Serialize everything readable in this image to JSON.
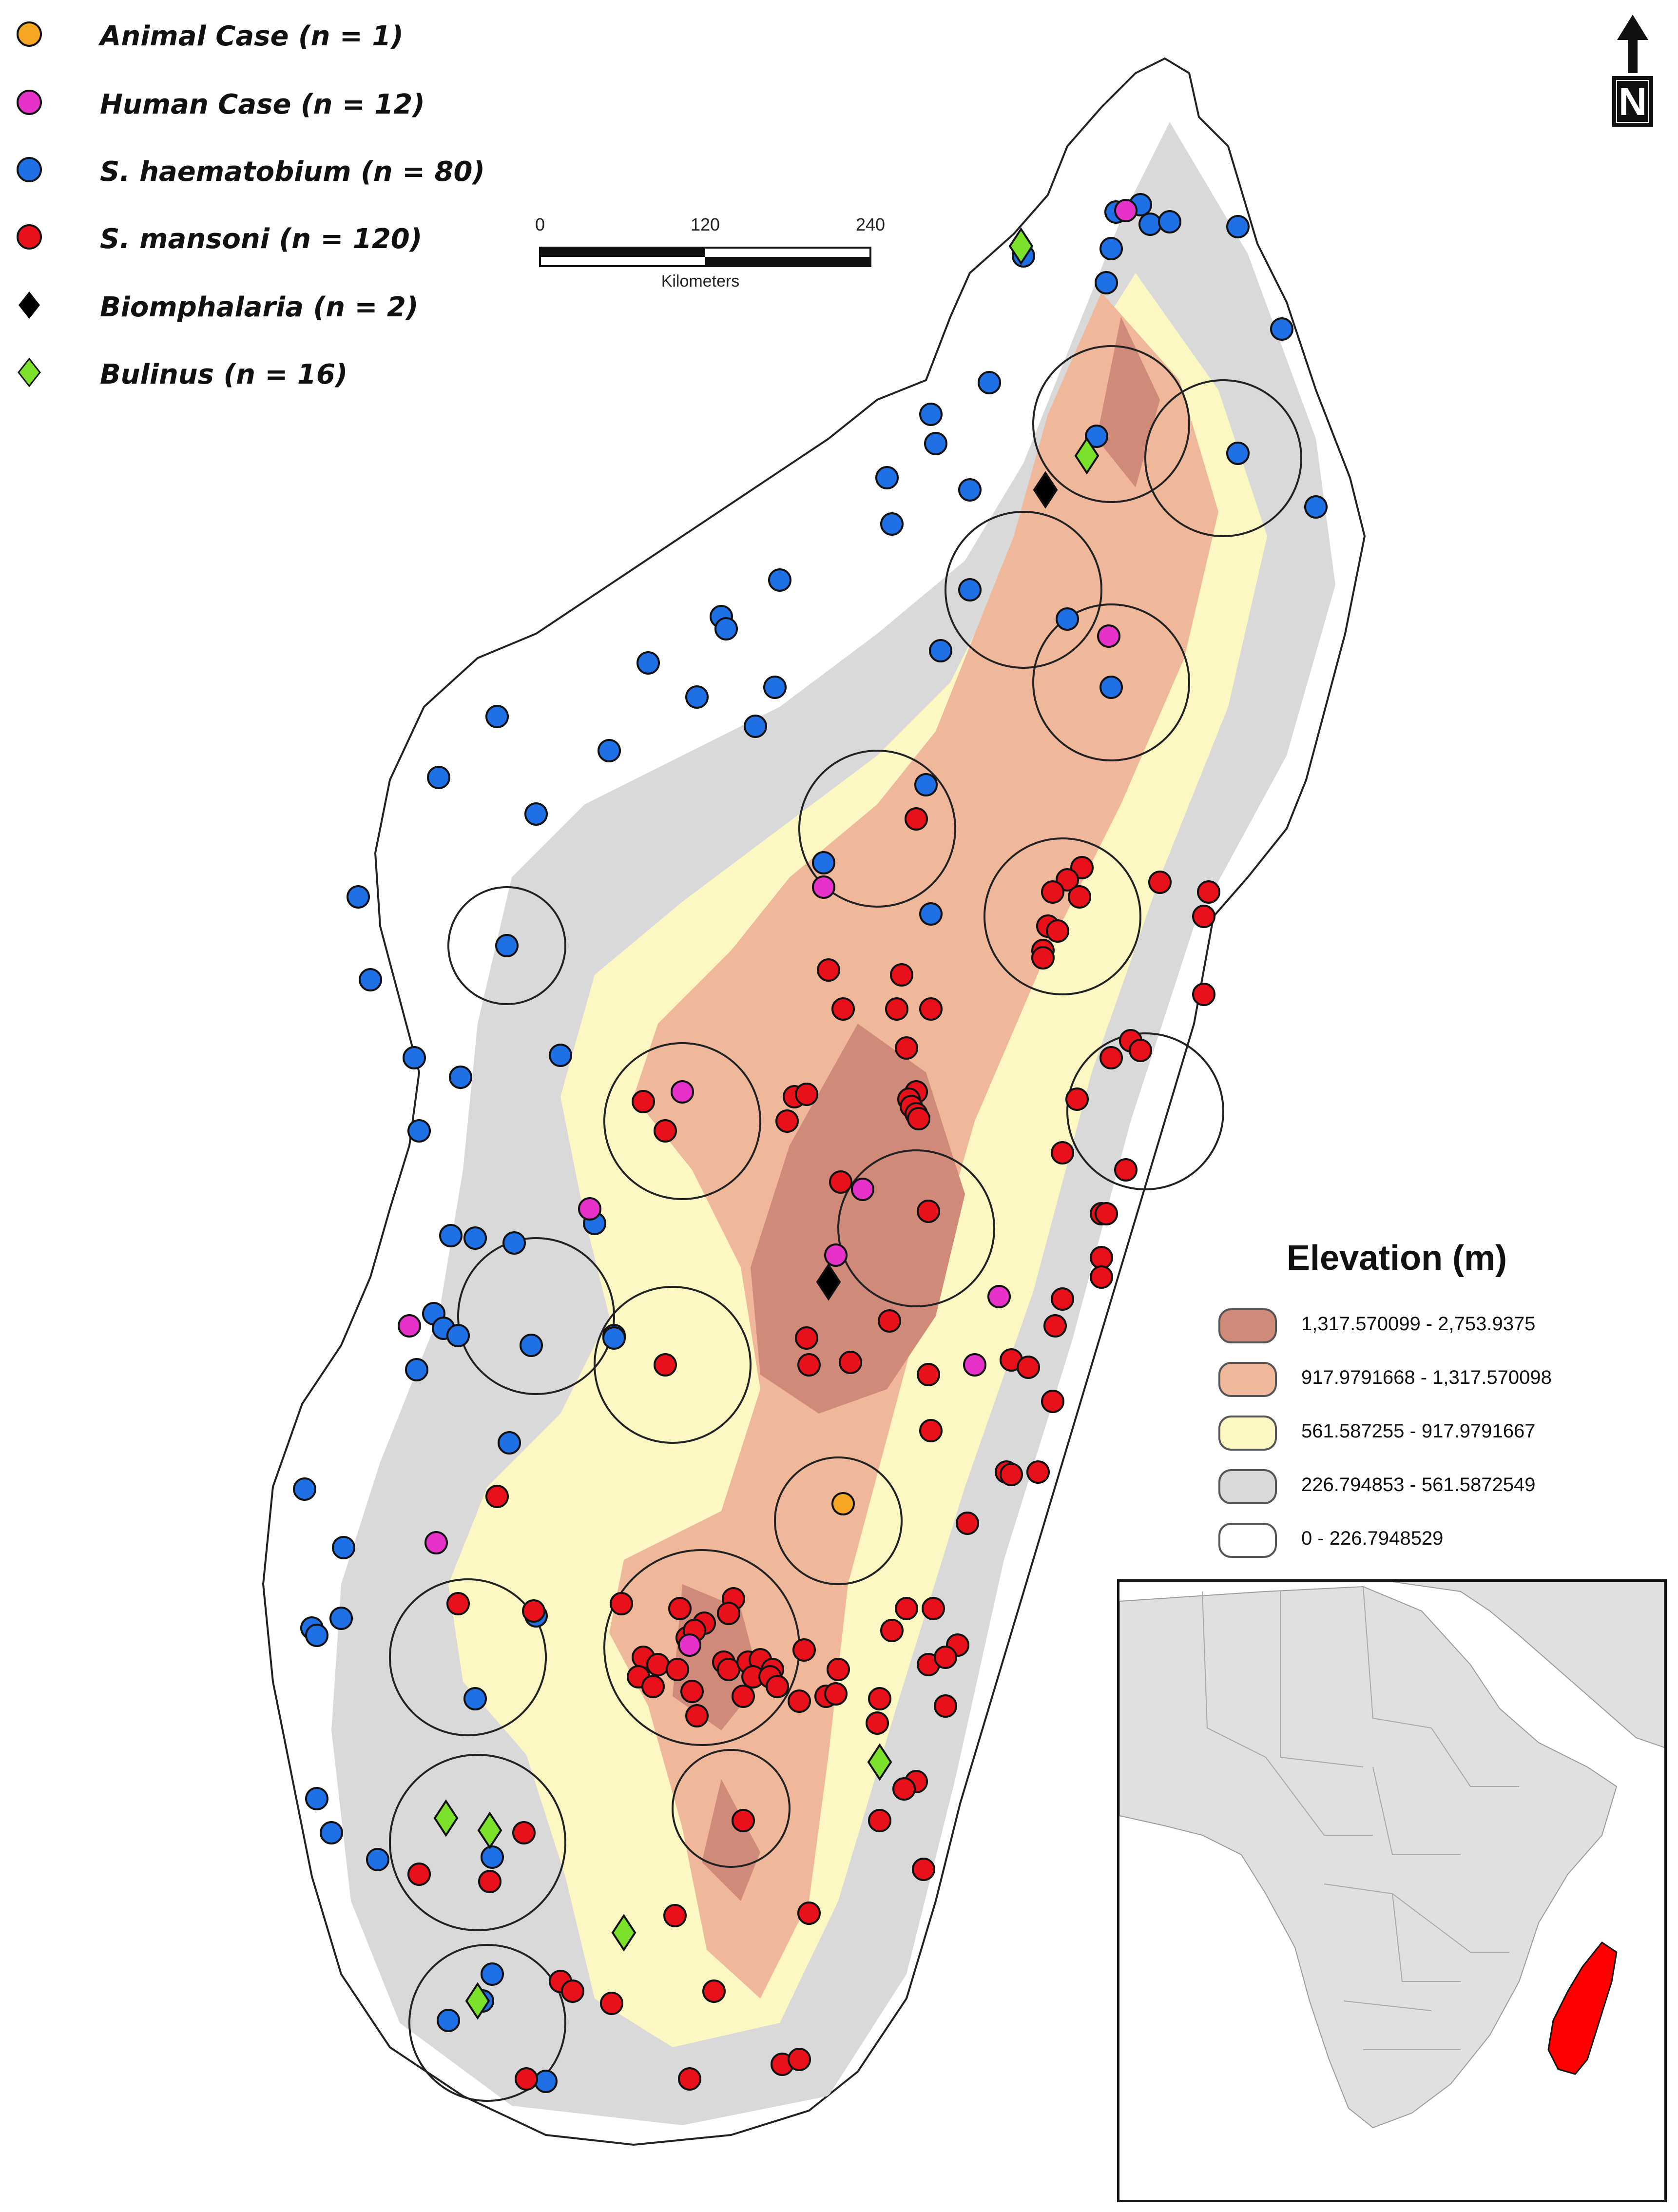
{
  "legend": {
    "items": [
      {
        "label": "Animal Case (n = 1)",
        "shape": "circle",
        "color": "#f5a623",
        "icon": "orange-dot-icon"
      },
      {
        "label": "Human Case (n = 12)",
        "shape": "circle",
        "color": "#e632c8",
        "icon": "magenta-dot-icon"
      },
      {
        "label": "S. haematobium (n = 80)",
        "shape": "circle",
        "color": "#1f6fe5",
        "icon": "blue-dot-icon"
      },
      {
        "label": "S. mansoni (n = 120)",
        "shape": "circle",
        "color": "#e8111b",
        "icon": "red-dot-icon"
      },
      {
        "label": "Biomphalaria (n = 2)",
        "shape": "diamond",
        "color": "#000000",
        "icon": "black-diamond-icon"
      },
      {
        "label": "Bulinus (n = 16)",
        "shape": "diamond",
        "color": "#7be12b",
        "icon": "green-diamond-icon"
      }
    ]
  },
  "scale_bar": {
    "ticks": [
      "0",
      "120",
      "240"
    ],
    "units": "Kilometers"
  },
  "north_arrow": {
    "label": "N",
    "icon": "north-arrow-icon"
  },
  "elevation_legend": {
    "title": "Elevation (m)",
    "classes": [
      {
        "label": "1,317.570099 - 2,753.9375",
        "color": "#d08a7a"
      },
      {
        "label": "917.9791668 - 1,317.570098",
        "color": "#f0b89a"
      },
      {
        "label": "561.587255 - 917.9791667",
        "color": "#fdf7c4"
      },
      {
        "label": "226.794853 - 561.5872549",
        "color": "#d9d9d9"
      },
      {
        "label": "0 - 226.7948529",
        "color": "#ffffff"
      }
    ]
  },
  "inset": {
    "land_color": "#e0e0e0",
    "highlight_color": "#ff0000",
    "icon": "africa-locator-map-icon"
  },
  "colors": {
    "animal": "#f5a623",
    "human": "#e632c8",
    "haematobium": "#1f6fe5",
    "mansoni": "#e8111b",
    "biomphalaria": "#000000",
    "bulinus": "#7be12b"
  }
}
